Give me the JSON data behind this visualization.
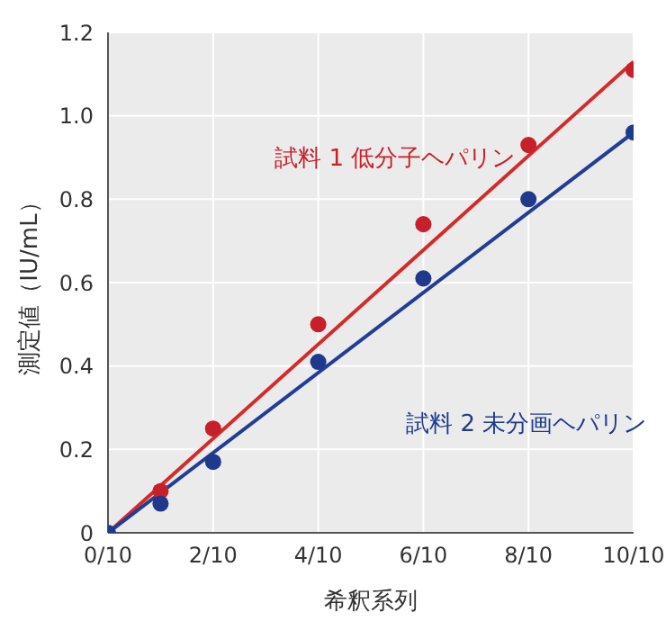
{
  "chart_data": {
    "type": "scatter",
    "xlabel": "希釈系列",
    "ylabel": "測定値（IU/mL）",
    "xlim": [
      0,
      1
    ],
    "xticks": [
      {
        "value": 0,
        "label": "0/10"
      },
      {
        "value": 0.2,
        "label": "2/10"
      },
      {
        "value": 0.4,
        "label": "4/10"
      },
      {
        "value": 0.6,
        "label": "6/10"
      },
      {
        "value": 0.8,
        "label": "8/10"
      },
      {
        "value": 1,
        "label": "10/10"
      }
    ],
    "ylim": [
      0,
      1.2
    ],
    "yticks": [
      0,
      0.2,
      0.4,
      0.6,
      0.8,
      {
        "value": 1,
        "label": "1.0"
      },
      1.2
    ],
    "grid": true,
    "legend": false,
    "marker": "circle",
    "series": [
      {
        "type": "line",
        "marker": "none",
        "color": "#d42a2a",
        "x": [
          0,
          1
        ],
        "values": [
          0,
          1.13
        ]
      },
      {
        "type": "line",
        "marker": "none",
        "color": "#233c96",
        "x": [
          0,
          1
        ],
        "values": [
          0,
          0.96
        ]
      },
      {
        "name": "試料 1 低分子ヘパリン",
        "color": "#c8202a",
        "x": [
          0.1,
          0.2,
          0.4,
          0.6,
          0.8,
          1
        ],
        "values": [
          0.1,
          0.25,
          0.5,
          0.74,
          0.93,
          1.11
        ]
      },
      {
        "name": "試料 2 未分画ヘパリン",
        "color": "#1f3a8c",
        "x": [
          0,
          0.1,
          0.2,
          0.4,
          0.6,
          0.8,
          1
        ],
        "values": [
          0,
          0.07,
          0.17,
          0.41,
          0.61,
          0.8,
          0.96
        ]
      }
    ]
  }
}
